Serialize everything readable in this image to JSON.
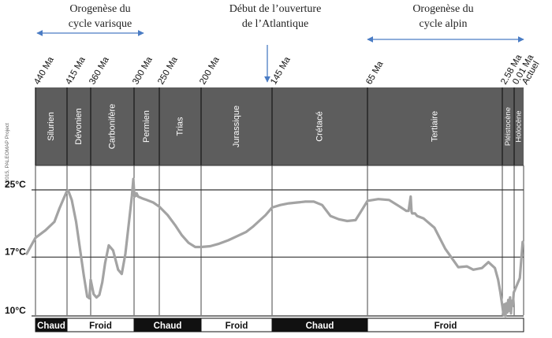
{
  "annotations": {
    "varisque": [
      "Orogenèse  du",
      "cycle varisque"
    ],
    "atlantique": [
      "Début de l’ouverture",
      "de l’Atlantique"
    ],
    "alpin": [
      "Orogenèse  du",
      "cycle alpin"
    ],
    "copyright": "© 2015, PALEOMAP Project",
    "colors": {
      "arrow_blue": "#4a7cc4",
      "band_dark": "#5a5a5a",
      "curve": "#a3a3a3"
    }
  },
  "chart_data": {
    "type": "line",
    "title": "",
    "xlabel": "",
    "ylabel": "",
    "x_unit": "Ma",
    "x_axis_reversed": true,
    "x_scale": "piecewise (each period box drawn at its own width)",
    "grid": true,
    "time_ticks": [
      {
        "label": "440 Ma",
        "value": 440
      },
      {
        "label": "415 Ma",
        "value": 415
      },
      {
        "label": "360 Ma",
        "value": 360
      },
      {
        "label": "300 Ma",
        "value": 300
      },
      {
        "label": "250 Ma",
        "value": 250
      },
      {
        "label": "200 Ma",
        "value": 200
      },
      {
        "label": "145 Ma",
        "value": 145
      },
      {
        "label": "65 Ma",
        "value": 65
      },
      {
        "label": "2.58 Ma",
        "value": 2.58
      },
      {
        "label": "0.01 Ma",
        "value": 0.01
      },
      {
        "label": "Actuel",
        "value": 0
      }
    ],
    "periods": [
      {
        "name": "Silurien",
        "from": 440,
        "to": 415
      },
      {
        "name": "Dévonien",
        "from": 415,
        "to": 360
      },
      {
        "name": "Carbonifère",
        "from": 360,
        "to": 300
      },
      {
        "name": "Permien",
        "from": 300,
        "to": 250
      },
      {
        "name": "Trias",
        "from": 250,
        "to": 200
      },
      {
        "name": "Jurassique",
        "from": 200,
        "to": 145
      },
      {
        "name": "Crétacé",
        "from": 145,
        "to": 65
      },
      {
        "name": "Tertiaire",
        "from": 65,
        "to": 2.58
      },
      {
        "name": "Pléistocène",
        "from": 2.58,
        "to": 0.01
      },
      {
        "name": "Holocène",
        "from": 0.01,
        "to": 0
      }
    ],
    "y_ticks": [
      {
        "label": "25°C",
        "value": 25
      },
      {
        "label": "17°C",
        "value": 17
      },
      {
        "label": "10°C",
        "value": 10
      }
    ],
    "ylim": [
      9,
      27
    ],
    "climate_bands": [
      {
        "label": "Chaud",
        "from": 440,
        "to": 415,
        "dark": true
      },
      {
        "label": "Froid",
        "from": 415,
        "to": 300,
        "dark": false
      },
      {
        "label": "Chaud",
        "from": 300,
        "to": 200,
        "dark": true
      },
      {
        "label": "Froid",
        "from": 200,
        "to": 145,
        "dark": false
      },
      {
        "label": "Chaud",
        "from": 145,
        "to": 65,
        "dark": true
      },
      {
        "label": "Froid",
        "from": 65,
        "to": 0,
        "dark": false
      }
    ],
    "ranges": {
      "varisque": {
        "from": 440,
        "to": 300
      },
      "alpin": {
        "from": 65,
        "to": 0
      },
      "atlantique_at": 145
    },
    "series": [
      {
        "x": [
          447,
          440,
          432,
          425,
          421,
          417,
          415,
          412,
          404,
          394,
          385,
          376,
          368,
          363,
          360,
          356,
          352,
          348,
          344,
          340,
          335,
          329,
          322,
          317,
          312,
          307,
          303,
          301,
          300,
          299,
          298,
          297,
          296,
          295,
          292,
          284,
          275,
          262,
          250,
          240,
          231,
          223,
          215,
          207,
          200,
          193,
          186,
          179,
          172,
          165,
          160,
          155,
          150,
          145,
          138,
          131,
          124,
          117,
          110,
          103,
          96,
          89,
          82,
          75,
          71,
          68,
          65,
          60,
          55,
          50,
          47,
          46,
          45,
          44.6,
          44.3,
          43,
          42,
          39,
          34,
          29,
          23,
          19,
          16,
          12,
          9,
          6,
          4.5,
          3.5,
          2.58,
          2.3,
          2.1,
          1.9,
          1.7,
          1.5,
          1.3,
          1.1,
          0.9,
          0.7,
          0.5,
          0.3,
          0.1,
          0.01,
          0.004,
          0.001
        ],
        "values": [
          17.4,
          19.3,
          20.2,
          21.2,
          22.8,
          24.2,
          24.9,
          24.9,
          23.8,
          21.2,
          18.0,
          14.8,
          12.3,
          12.1,
          14.3,
          12.6,
          12.2,
          12.5,
          14.0,
          16.3,
          18.4,
          17.8,
          15.5,
          15.0,
          17.4,
          21.2,
          24.3,
          26.3,
          24.9,
          24.2,
          24.6,
          24.5,
          24.3,
          24.6,
          24.2,
          24.0,
          23.8,
          23.5,
          23.0,
          22.0,
          20.8,
          19.6,
          18.7,
          18.2,
          18.2,
          18.3,
          18.6,
          19.0,
          19.5,
          20.0,
          20.6,
          21.3,
          22.0,
          22.9,
          23.2,
          23.4,
          23.5,
          23.6,
          23.6,
          23.2,
          21.9,
          21.5,
          21.3,
          21.4,
          22.3,
          23.0,
          23.7,
          23.9,
          23.8,
          23.0,
          22.5,
          22.5,
          24.2,
          22.4,
          22.2,
          22.2,
          21.9,
          21.6,
          20.5,
          18.0,
          15.8,
          15.9,
          15.5,
          15.7,
          16.4,
          15.7,
          14.3,
          12.8,
          11.2,
          10.1,
          11.4,
          10.0,
          11.5,
          10.4,
          11.9,
          10.6,
          12.2,
          10.3,
          11.8,
          11.2,
          12.8,
          12.9,
          14.5,
          18.8
        ]
      }
    ]
  }
}
